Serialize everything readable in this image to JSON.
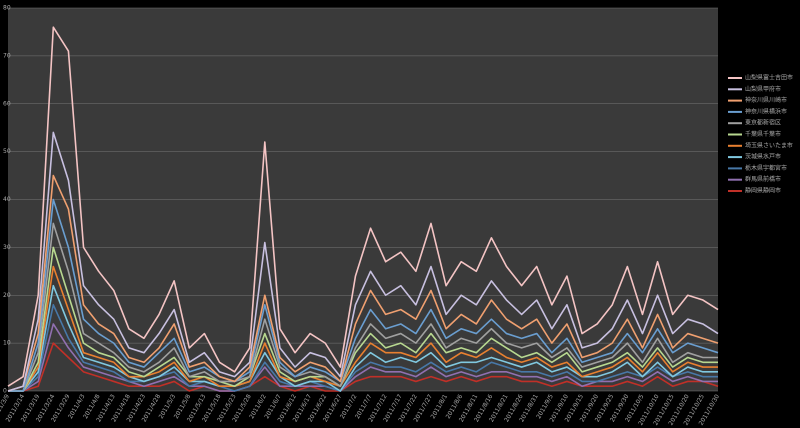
{
  "chart_data": {
    "type": "line",
    "categories": [
      "2011/3/9",
      "2011/3/14",
      "2011/3/19",
      "2011/3/24",
      "2011/3/29",
      "2011/4/3",
      "2011/4/8",
      "2011/4/13",
      "2011/4/18",
      "2011/4/23",
      "2011/4/28",
      "2011/5/3",
      "2011/5/8",
      "2011/5/13",
      "2011/5/18",
      "2011/5/23",
      "2011/5/28",
      "2011/6/2",
      "2011/6/7",
      "2011/6/12",
      "2011/6/17",
      "2011/6/22",
      "2011/6/27",
      "2011/7/2",
      "2011/7/7",
      "2011/7/12",
      "2011/7/17",
      "2011/7/22",
      "2011/7/27",
      "2011/8/1",
      "2011/8/6",
      "2011/8/11",
      "2011/8/16",
      "2011/8/21",
      "2011/8/26",
      "2011/8/31",
      "2011/9/5",
      "2011/9/10",
      "2011/9/15",
      "2011/9/20",
      "2011/9/25",
      "2011/9/30",
      "2011/10/5",
      "2011/10/10",
      "2011/10/15",
      "2011/10/20",
      "2011/10/25",
      "2011/10/30"
    ],
    "series": [
      {
        "name": "山梨県富士吉田市",
        "color": "#f4c4c4",
        "values": [
          1,
          3,
          20,
          76,
          71,
          30,
          25,
          21,
          13,
          11,
          16,
          23,
          9,
          12,
          6,
          4,
          9,
          52,
          13,
          8,
          12,
          10,
          5,
          24,
          34,
          27,
          29,
          25,
          35,
          22,
          27,
          25,
          32,
          26,
          22,
          26,
          18,
          24,
          12,
          14,
          18,
          26,
          16,
          27,
          16,
          20,
          19,
          17
        ]
      },
      {
        "name": "山梨県甲府市",
        "color": "#c8c0e0",
        "values": [
          0,
          1,
          15,
          54,
          44,
          22,
          18,
          15,
          9,
          8,
          12,
          17,
          6,
          8,
          4,
          3,
          6,
          31,
          9,
          5,
          8,
          7,
          3,
          18,
          25,
          20,
          22,
          18,
          26,
          16,
          20,
          18,
          23,
          19,
          16,
          19,
          13,
          18,
          9,
          10,
          13,
          19,
          12,
          20,
          12,
          15,
          14,
          12
        ]
      },
      {
        "name": "神奈川県川崎市",
        "color": "#f0a070",
        "values": [
          0,
          1,
          12,
          45,
          38,
          18,
          14,
          12,
          7,
          6,
          9,
          14,
          5,
          6,
          3,
          2,
          5,
          20,
          7,
          4,
          6,
          5,
          2,
          14,
          21,
          16,
          17,
          15,
          21,
          13,
          16,
          14,
          19,
          15,
          13,
          15,
          10,
          14,
          7,
          8,
          10,
          15,
          9,
          16,
          9,
          12,
          11,
          10
        ]
      },
      {
        "name": "神奈川県横浜市",
        "color": "#6a9ed0",
        "values": [
          0,
          0,
          10,
          40,
          30,
          15,
          12,
          10,
          6,
          5,
          8,
          11,
          4,
          5,
          3,
          2,
          4,
          18,
          6,
          3,
          5,
          4,
          2,
          11,
          17,
          13,
          14,
          12,
          17,
          11,
          13,
          12,
          15,
          12,
          11,
          12,
          8,
          11,
          6,
          7,
          8,
          12,
          8,
          13,
          8,
          10,
          9,
          8
        ]
      },
      {
        "name": "東京都新宿区",
        "color": "#a0a0a0",
        "values": [
          0,
          0,
          8,
          35,
          25,
          12,
          10,
          8,
          5,
          4,
          6,
          9,
          3,
          4,
          2,
          2,
          3,
          15,
          5,
          3,
          4,
          3,
          1,
          9,
          14,
          11,
          12,
          10,
          14,
          9,
          11,
          10,
          13,
          10,
          9,
          10,
          7,
          9,
          5,
          6,
          7,
          10,
          6,
          11,
          6,
          8,
          7,
          7
        ]
      },
      {
        "name": "千葉県千葉市",
        "color": "#b8d890",
        "values": [
          0,
          0,
          6,
          30,
          20,
          10,
          8,
          7,
          4,
          3,
          5,
          7,
          3,
          3,
          2,
          1,
          3,
          12,
          4,
          2,
          3,
          3,
          1,
          8,
          12,
          9,
          10,
          8,
          12,
          8,
          9,
          8,
          11,
          9,
          7,
          8,
          6,
          8,
          4,
          5,
          6,
          8,
          5,
          9,
          5,
          7,
          6,
          6
        ]
      },
      {
        "name": "埼玉県さいたま市",
        "color": "#e88030",
        "values": [
          0,
          0,
          5,
          26,
          17,
          8,
          7,
          6,
          3,
          3,
          4,
          6,
          2,
          3,
          1,
          1,
          2,
          10,
          3,
          2,
          3,
          2,
          1,
          6,
          10,
          8,
          8,
          7,
          10,
          6,
          8,
          7,
          9,
          7,
          6,
          7,
          5,
          6,
          3,
          4,
          5,
          7,
          4,
          8,
          4,
          6,
          5,
          5
        ]
      },
      {
        "name": "茨城県水戸市",
        "color": "#80c8e0",
        "values": [
          0,
          0,
          4,
          22,
          14,
          7,
          6,
          5,
          3,
          2,
          3,
          5,
          2,
          2,
          1,
          1,
          2,
          8,
          3,
          1,
          2,
          2,
          0,
          5,
          8,
          6,
          7,
          6,
          8,
          5,
          6,
          6,
          7,
          6,
          5,
          6,
          4,
          5,
          3,
          3,
          4,
          6,
          3,
          6,
          3,
          5,
          4,
          4
        ]
      },
      {
        "name": "栃木県宇都宮市",
        "color": "#4878a8",
        "values": [
          0,
          0,
          3,
          18,
          11,
          6,
          5,
          4,
          2,
          2,
          3,
          4,
          1,
          2,
          1,
          0,
          1,
          6,
          2,
          1,
          2,
          1,
          0,
          4,
          6,
          5,
          5,
          4,
          6,
          4,
          5,
          4,
          6,
          5,
          4,
          4,
          3,
          4,
          2,
          2,
          3,
          4,
          3,
          5,
          3,
          4,
          3,
          3
        ]
      },
      {
        "name": "群馬県前橋市",
        "color": "#9070b0",
        "values": [
          0,
          0,
          2,
          14,
          9,
          5,
          4,
          3,
          2,
          1,
          2,
          3,
          1,
          1,
          0,
          0,
          1,
          5,
          1,
          1,
          1,
          1,
          0,
          3,
          5,
          4,
          4,
          3,
          5,
          3,
          4,
          3,
          4,
          4,
          3,
          3,
          2,
          3,
          1,
          2,
          2,
          3,
          2,
          4,
          2,
          3,
          2,
          2
        ]
      },
      {
        "name": "静岡県静岡市",
        "color": "#c03028",
        "values": [
          0,
          0,
          1,
          10,
          7,
          4,
          3,
          2,
          1,
          1,
          1,
          2,
          0,
          1,
          0,
          0,
          1,
          3,
          1,
          0,
          1,
          0,
          0,
          2,
          3,
          3,
          3,
          2,
          3,
          2,
          3,
          2,
          3,
          3,
          2,
          2,
          1,
          2,
          1,
          1,
          1,
          2,
          1,
          3,
          1,
          2,
          2,
          1
        ]
      }
    ],
    "ylim": [
      0,
      80
    ],
    "yticks": [
      0,
      10,
      20,
      30,
      40,
      50,
      60,
      70,
      80
    ],
    "grid": true,
    "legend": "right"
  }
}
